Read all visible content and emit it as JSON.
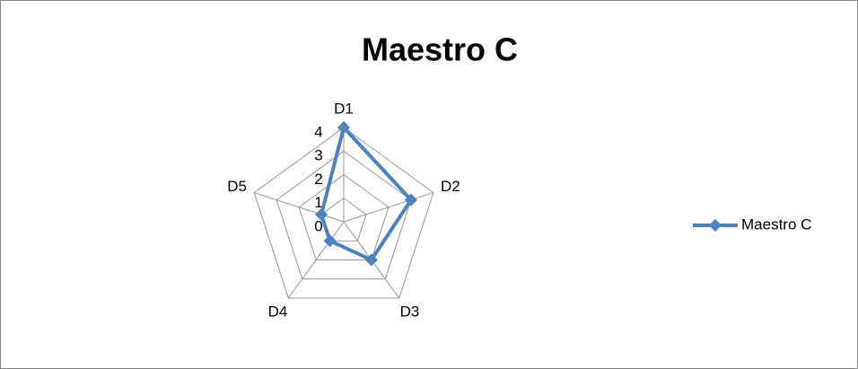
{
  "chart_data": {
    "type": "radar",
    "title": "Maestro C",
    "categories": [
      "D1",
      "D2",
      "D3",
      "D4",
      "D5"
    ],
    "series": [
      {
        "name": "Maestro C",
        "color": "#4f81bd",
        "values": [
          4,
          3,
          2,
          1,
          1
        ]
      }
    ],
    "ylim": [
      0,
      4
    ],
    "yticks": [
      0,
      1,
      2,
      3,
      4
    ],
    "grid": true,
    "legend": "right"
  }
}
